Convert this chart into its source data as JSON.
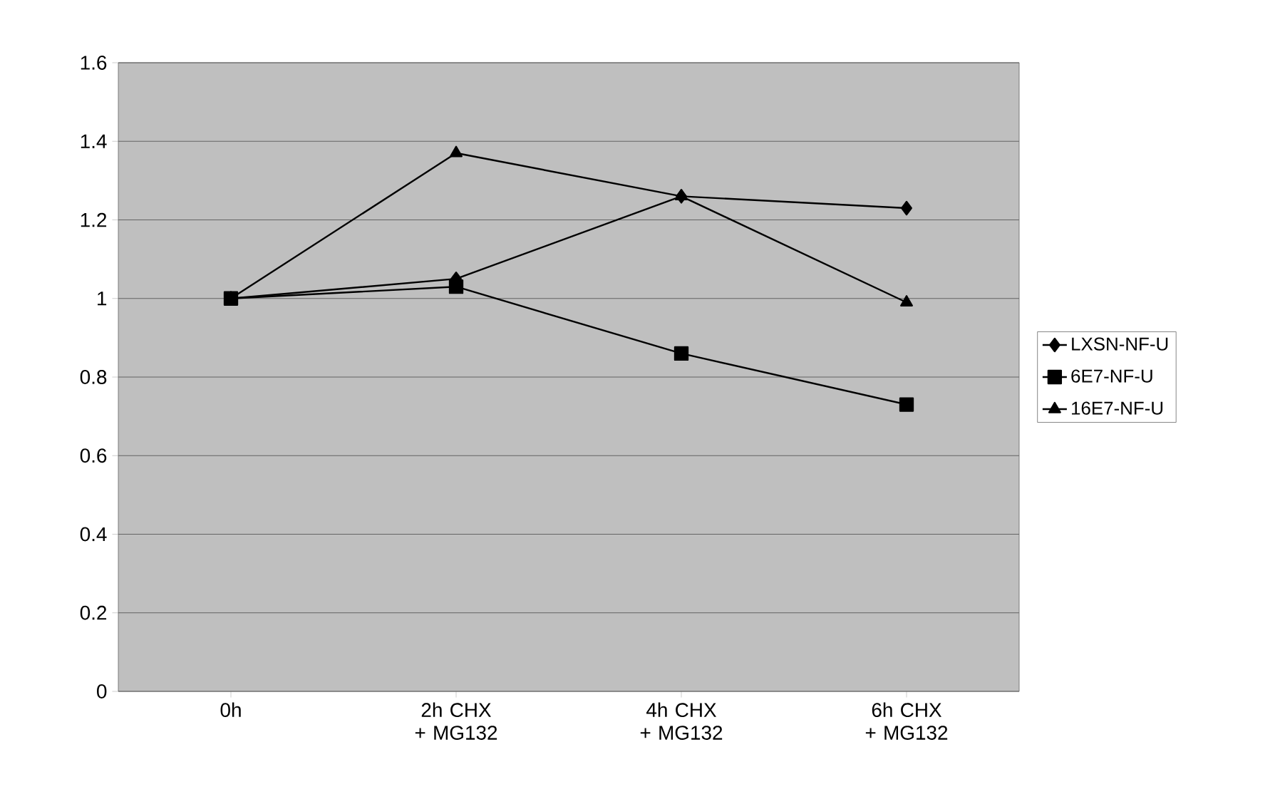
{
  "chart_data": {
    "type": "line",
    "categories": [
      "0h",
      "2h CHX + MG132",
      "4h CHX + MG132",
      "6h CHX + MG132"
    ],
    "series": [
      {
        "name": "LXSN-NF-U",
        "color": "#000000",
        "marker": "diamond",
        "values": [
          1.0,
          1.05,
          1.26,
          1.23
        ]
      },
      {
        "name": "6E7-NF-U",
        "color": "#000000",
        "marker": "square",
        "values": [
          1.0,
          1.03,
          0.86,
          0.73
        ]
      },
      {
        "name": "16E7-NF-U",
        "color": "#000000",
        "marker": "triangle",
        "values": [
          1.0,
          1.37,
          1.26,
          0.99
        ]
      }
    ],
    "ylim": [
      0,
      1.6
    ],
    "yticks": [
      0,
      0.2,
      0.4,
      0.6,
      0.8,
      1,
      1.2,
      1.4,
      1.6
    ],
    "grid": "y",
    "legend": "right",
    "line_style": "solid"
  }
}
